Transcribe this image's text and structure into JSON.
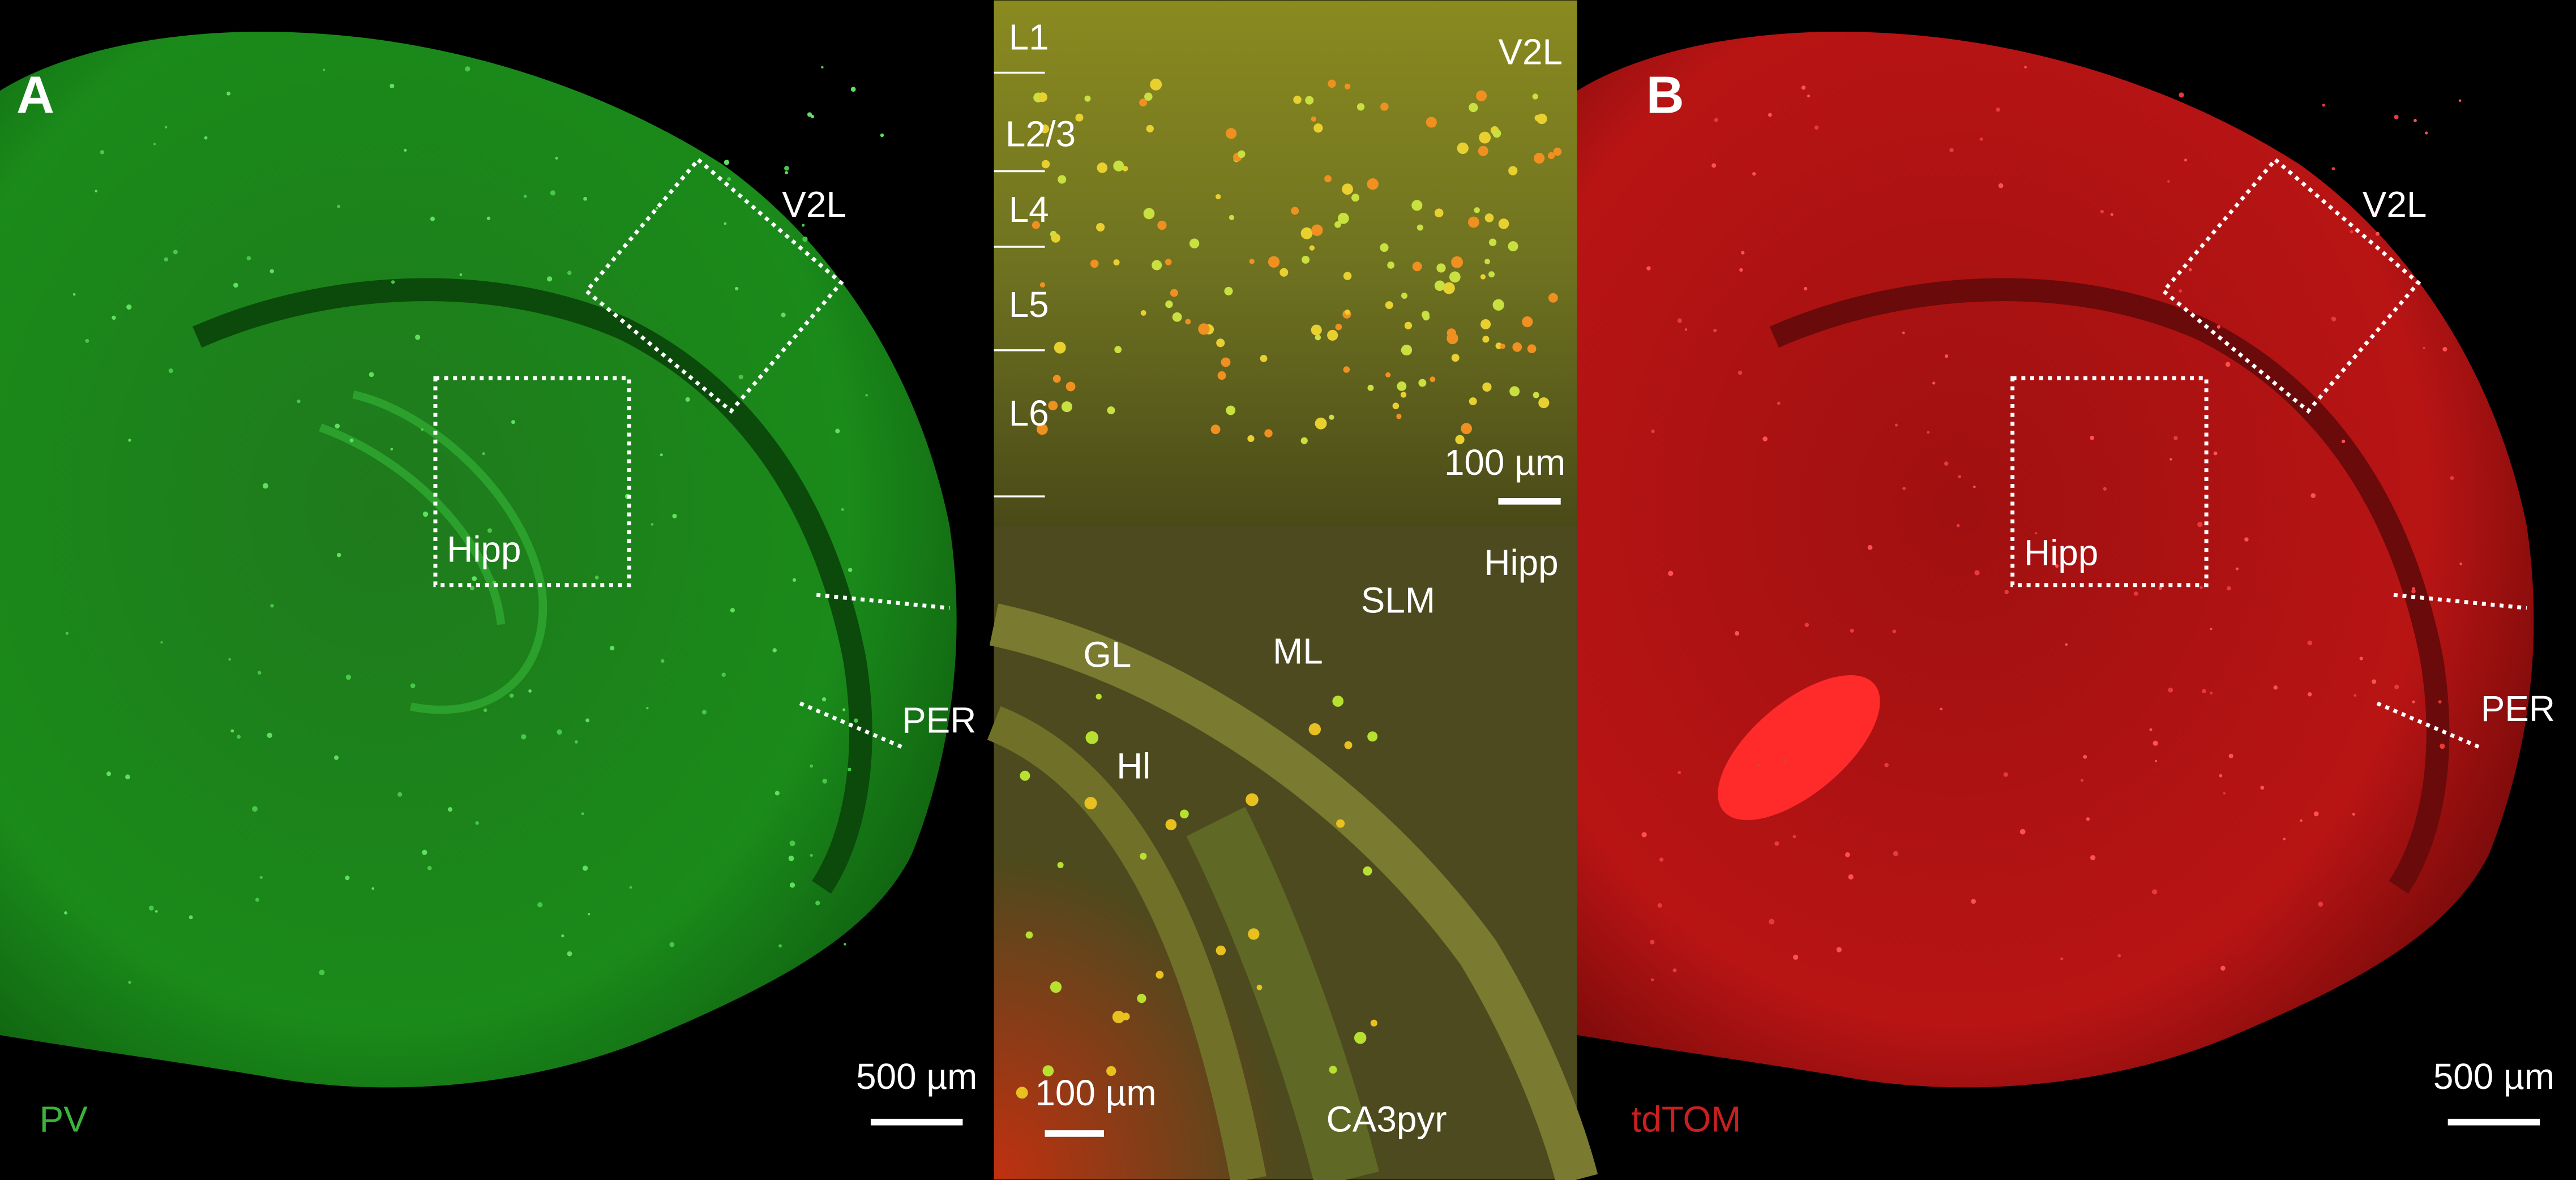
{
  "panel_a": {
    "letter": "A",
    "box_cortex": "V2L",
    "box_hippocampus": "Hipp",
    "region_per": "PER",
    "stain": "PV",
    "scale_bar": "500 µm"
  },
  "inset_cortex": {
    "layers": [
      "L1",
      "L2/3",
      "L4",
      "L5",
      "L6"
    ],
    "region": "V2L",
    "scale_bar": "100 µm"
  },
  "inset_hippocampus": {
    "region": "Hipp",
    "labels": [
      "SLM",
      "ML",
      "GL",
      "Hl",
      "CA3pyr"
    ],
    "scale_bar": "100 µm"
  },
  "panel_b": {
    "letter": "B",
    "box_cortex": "V2L",
    "box_hippocampus": "Hipp",
    "region_per": "PER",
    "stain": "tdTOM",
    "scale_bar": "500 µm"
  }
}
